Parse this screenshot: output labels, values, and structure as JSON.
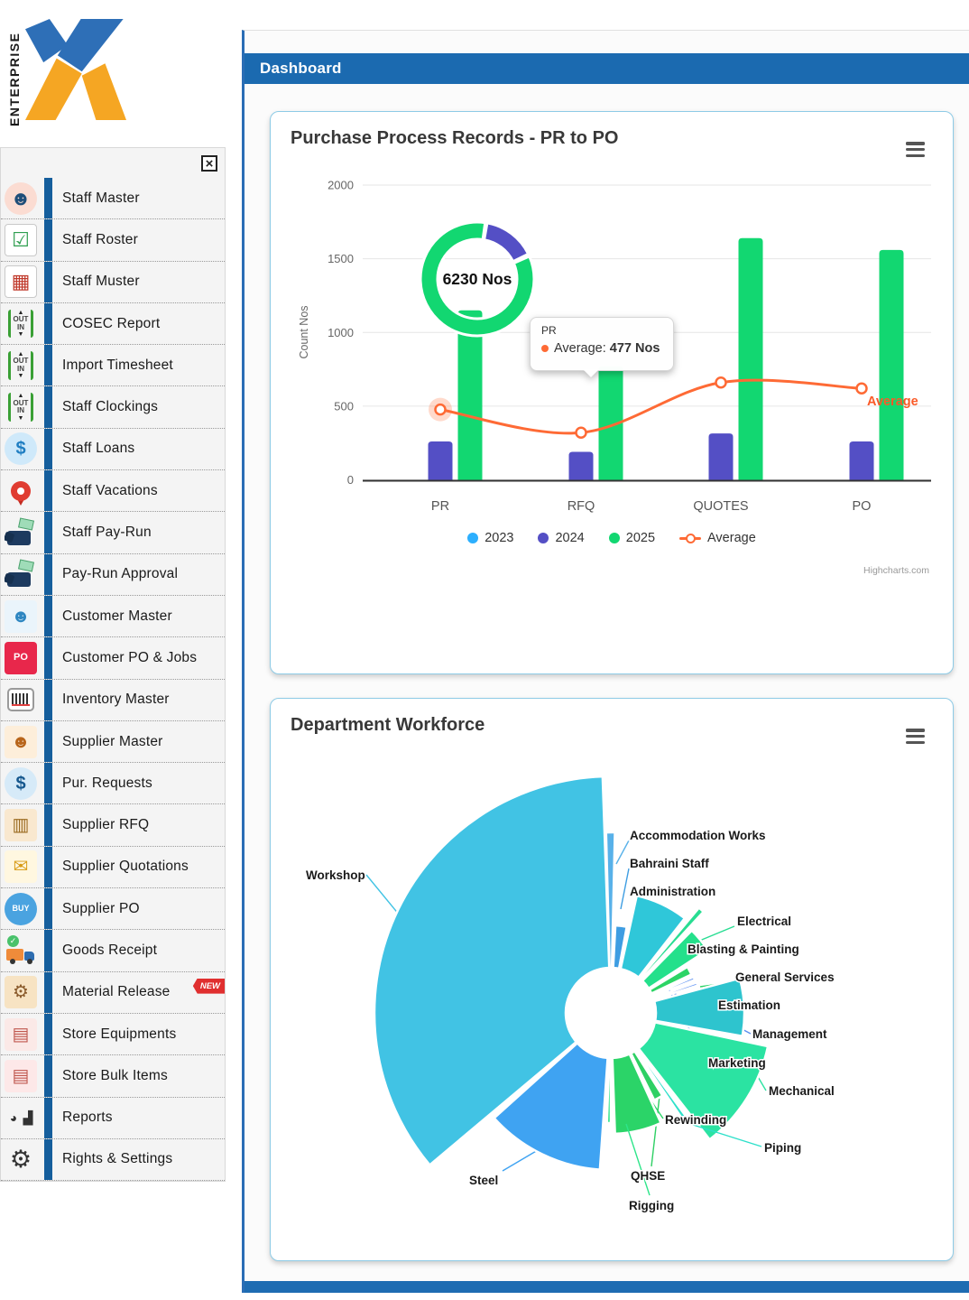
{
  "logo": {
    "text": "ENTERPRISE"
  },
  "header": {
    "title": "Dashboard"
  },
  "sidebar": {
    "close_label": "×",
    "items": [
      {
        "label": "Staff Master",
        "icon": "staff-master"
      },
      {
        "label": "Staff Roster",
        "icon": "staff-roster"
      },
      {
        "label": "Staff Muster",
        "icon": "staff-muster"
      },
      {
        "label": "COSEC Report",
        "icon": "cosec-report"
      },
      {
        "label": "Import Timesheet",
        "icon": "import-timesheet"
      },
      {
        "label": "Staff Clockings",
        "icon": "staff-clockings"
      },
      {
        "label": "Staff Loans",
        "icon": "staff-loans"
      },
      {
        "label": "Staff Vacations",
        "icon": "staff-vacations"
      },
      {
        "label": "Staff Pay-Run",
        "icon": "staff-pay-run"
      },
      {
        "label": "Pay-Run Approval",
        "icon": "pay-run-approval"
      },
      {
        "label": "Customer Master",
        "icon": "customer-master"
      },
      {
        "label": "Customer PO & Jobs",
        "icon": "customer-po-jobs"
      },
      {
        "label": "Inventory Master",
        "icon": "inventory-master"
      },
      {
        "label": "Supplier Master",
        "icon": "supplier-master"
      },
      {
        "label": "Pur. Requests",
        "icon": "pur-requests"
      },
      {
        "label": "Supplier RFQ",
        "icon": "supplier-rfq"
      },
      {
        "label": "Supplier Quotations",
        "icon": "supplier-quotations"
      },
      {
        "label": "Supplier PO",
        "icon": "supplier-po"
      },
      {
        "label": "Goods Receipt",
        "icon": "goods-receipt"
      },
      {
        "label": "Material Release",
        "icon": "material-release",
        "badge": "NEW"
      },
      {
        "label": "Store Equipments",
        "icon": "store-equipments"
      },
      {
        "label": "Store Bulk Items",
        "icon": "store-bulk-items"
      },
      {
        "label": "Reports",
        "icon": "reports"
      },
      {
        "label": "Rights & Settings",
        "icon": "rights-settings"
      }
    ]
  },
  "cards": [
    {
      "title": "Purchase Process Records - PR to PO"
    },
    {
      "title": "Department Workforce"
    }
  ],
  "chart_data": [
    {
      "type": "bar",
      "title": "Purchase Process Records - PR to PO",
      "ylabel": "Count Nos",
      "ylim": [
        0,
        2000
      ],
      "yticks": [
        0,
        500,
        1000,
        1500,
        2000
      ],
      "categories": [
        "PR",
        "RFQ",
        "QUOTES",
        "PO"
      ],
      "series": [
        {
          "name": "2023",
          "color": "#2caffe",
          "values": [
            0,
            0,
            0,
            0
          ]
        },
        {
          "name": "2024",
          "color": "#544fc5",
          "values": [
            260,
            190,
            315,
            260
          ]
        },
        {
          "name": "2025",
          "color": "#12d771",
          "values": [
            1150,
            770,
            1640,
            1560
          ]
        }
      ],
      "line_series": {
        "name": "Average",
        "color": "#fe6a35",
        "values": [
          477,
          320,
          660,
          620
        ],
        "end_label": "Average"
      },
      "donut": {
        "center_label": "6230 Nos",
        "segments": [
          {
            "name": "2025",
            "color": "#12d771",
            "from": 66.5,
            "to": 368
          },
          {
            "name": "2024",
            "color": "#544fc5",
            "from": 10,
            "to": 64
          }
        ]
      },
      "tooltip": {
        "category": "PR",
        "series_label": "Average:",
        "value": "477 Nos"
      },
      "legend": [
        "2023",
        "2024",
        "2025",
        "Average"
      ],
      "credit": "Highcharts.com",
      "grid": true,
      "legend_position": "bottom"
    },
    {
      "type": "pie",
      "variant": "variable-radius",
      "title": "Department Workforce",
      "center": [
        377,
        348
      ],
      "inner_radius": 50,
      "slices": [
        {
          "name": "Accommodation Works",
          "a0": -1.5,
          "a1": 1.3,
          "r": 200,
          "color": "#58b1e9",
          "label": [
            398,
            144
          ],
          "conn": [
            [
              397,
              157
            ],
            [
              383,
              183
            ]
          ]
        },
        {
          "name": "Bahraini Staff",
          "a0": 3,
          "a1": 10.5,
          "r": 97,
          "color": "#3e9de2",
          "label": [
            398,
            175
          ],
          "conn": [
            [
              397,
              188
            ],
            [
              388,
              233
            ]
          ]
        },
        {
          "name": "Administration",
          "a0": 12.5,
          "a1": 38,
          "r": 133,
          "color": "#2fc7d9",
          "label": [
            398,
            206
          ],
          "conn": [
            [
              416,
              220
            ],
            [
              442,
              258
            ]
          ]
        },
        {
          "name": "Electrical",
          "a0": 40,
          "a1": 42.5,
          "r": 152,
          "color": "#28dd92",
          "label": [
            517,
            239
          ],
          "conn": [
            [
              514,
              252
            ],
            [
              456,
              276
            ]
          ]
        },
        {
          "name": "Blasting & Painting",
          "a0": 44.5,
          "a1": 57,
          "r": 128,
          "color": "#24e08b",
          "label": [
            462,
            270
          ],
          "conn": [
            [
              460,
              283
            ],
            [
              462,
              290
            ]
          ]
        },
        {
          "name": "General Services",
          "a0": 59,
          "a1": 64.5,
          "r": 99,
          "color": "#2cd465",
          "label": [
            515,
            301
          ],
          "conn": [
            [
              512,
              314
            ],
            [
              476,
              319
            ]
          ]
        },
        {
          "name": "Management",
          "a0": 66.5,
          "a1": 68.5,
          "r": 100,
          "color": "#5b8ff0",
          "label": [
            534,
            364
          ],
          "conn": [
            [
              532,
              371
            ],
            [
              437,
              321
            ]
          ]
        },
        {
          "name": "Marketing",
          "a0": 70.5,
          "a1": 72.5,
          "r": 101,
          "color": "#6e9bf4",
          "label": [
            485,
            396
          ],
          "conn": [
            [
              483,
              403
            ],
            [
              442,
              323
            ]
          ]
        },
        {
          "name": "Estimation",
          "a0": 75,
          "a1": 100,
          "r": 148,
          "color": "#2ec4ce",
          "label": [
            496,
            332
          ],
          "conn": [
            [
              494,
              345
            ],
            [
              519,
              356
            ]
          ]
        },
        {
          "name": "Mechanical",
          "a0": 102,
          "a1": 142,
          "r": 178,
          "color": "#2be3a2",
          "label": [
            552,
            427
          ],
          "conn": [
            [
              549,
              434
            ],
            [
              529,
              400
            ]
          ]
        },
        {
          "name": "Piping",
          "a0": 144,
          "a1": 146,
          "r": 148,
          "color": "#2ee0ca",
          "label": [
            547,
            490
          ],
          "conn": [
            [
              544,
              496
            ],
            [
              465,
              471
            ]
          ]
        },
        {
          "name": "QHSE",
          "a0": 148,
          "a1": 153.5,
          "r": 108,
          "color": "#2ed064",
          "label": [
            399,
            521
          ],
          "conn": [
            [
              422,
              518
            ],
            [
              431,
              440
            ]
          ]
        },
        {
          "name": "Rewinding",
          "a0": 155.5,
          "a1": 178,
          "r": 134,
          "color": "#2bd468",
          "label": [
            437,
            459
          ],
          "conn": [
            [
              435,
              465
            ],
            [
              420,
              443
            ]
          ]
        },
        {
          "name": "Rigging",
          "a0": 180,
          "a1": 182,
          "r": 122,
          "color": "#2ee58a",
          "label": [
            397,
            554
          ],
          "conn": [
            [
              420,
              550
            ],
            [
              394,
              471
            ]
          ]
        },
        {
          "name": "Steel",
          "a0": 184,
          "a1": 228,
          "r": 174,
          "color": "#3fa3f2",
          "label": [
            220,
            526
          ],
          "conn": [
            [
              257,
              523
            ],
            [
              296,
              500
            ]
          ]
        },
        {
          "name": "Workshop",
          "a0": 230,
          "a1": 358,
          "r": 262,
          "color": "#41c3e4",
          "label": [
            39,
            188
          ],
          "conn": [
            [
              106,
              195
            ],
            [
              166,
              268
            ]
          ]
        }
      ]
    }
  ]
}
